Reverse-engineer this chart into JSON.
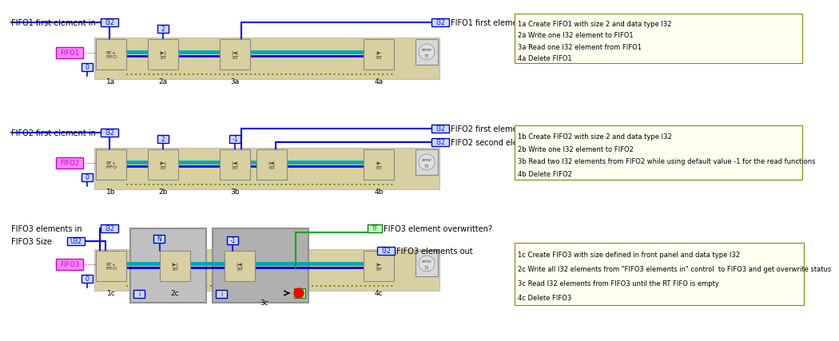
{
  "bg": "#ffffff",
  "note_bg": "#fffff0",
  "note_border": "#888800",
  "BLUE": "#0000ff",
  "TEAL": "#00aaaa",
  "OLIVE": "#888800",
  "PINK_BG": "#ff88ff",
  "PINK_BORDER": "#cc00cc",
  "TAN": "#d8d0a0",
  "GRAY_BLOCK": "#c8c8b8",
  "LOOP_GRAY": "#909090",
  "GREEN_WIRE": "#00aa00",
  "GREEN_LABEL_BG": "#ccffcc",
  "GREEN_LABEL_BD": "#008800",
  "BLUE_LABEL_BG": "#cce0ff",
  "BLUE_LABEL_BD": "#0000cc",
  "note1_lines": [
    "1a Create FIFO1 with size 2 and data type I32",
    "2a Write one I32 element to FIFO1",
    "3a Read one I32 element from FIFO1",
    "4a Delete FIFO1"
  ],
  "note2_lines": [
    "1b Create FIFO2 with size 2 and data type I32",
    "2b Write one I32 element to FIFO2",
    "3b Read two I32 elements from FIFO2 while using default value -1 for the read functions",
    "4b Delete FIFO2"
  ],
  "note3_lines": [
    "1c Create FIFO3 with size defined in front panel and data type I32",
    "2c Write all I32 elements from \"FIFO3 elements in\" control  to FIFO3 and get overwrite status",
    "3c Read I32 elements from FIFO3 until the RT FIFO is empty",
    "4c Delete FIFO3"
  ]
}
